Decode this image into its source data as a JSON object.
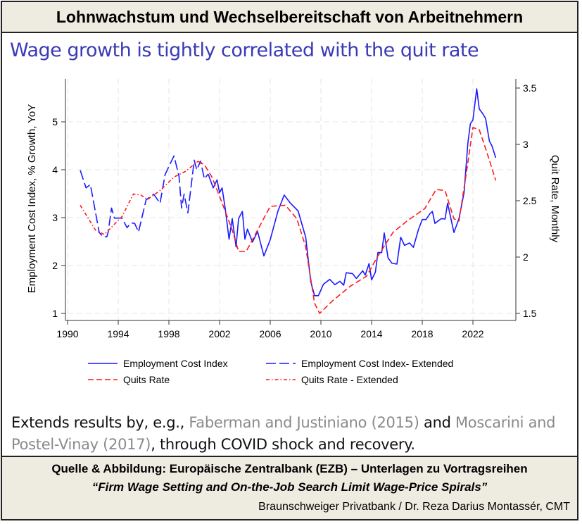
{
  "header": {
    "title": "Lohnwachstum und Wechselbereitschaft von Arbeitnehmern"
  },
  "subtitle": "Wage growth is tightly correlated with the quit rate",
  "note": {
    "part1": "Extends results by, e.g., ",
    "ref1": "Faberman and Justiniano (2015)",
    "part2": " and ",
    "ref2": "Moscarini and Postel-Vinay (2017)",
    "part3": ", through COVID shock and recovery."
  },
  "footer": {
    "source": "Quelle & Abbildung: Europäische Zentralbank (EZB) – Unterlagen zu Vortragsreihen",
    "quote": "“Firm Wage Setting and On-the-Job Search Limit Wage-Price Spirals”",
    "author": "Braunschweiger Privatbank / Dr. Reza Darius Montassér, CMT"
  },
  "chart_data": {
    "type": "line",
    "title": "",
    "xlabel": "",
    "ylabel": "Employment Cost Index, % Growth, YoY",
    "y2label": "Quit Rate, Monthly",
    "xlim": [
      1990,
      2024.7
    ],
    "ylim": [
      0.85,
      5.95
    ],
    "y2lim": [
      1.45,
      3.6
    ],
    "xticks": [
      1990,
      1994,
      1998,
      2002,
      2006,
      2010,
      2014,
      2018,
      2022
    ],
    "yticks": [
      1,
      2,
      3,
      4,
      5
    ],
    "y2ticks": [
      1.5,
      2,
      2.5,
      3,
      3.5
    ],
    "grid": true,
    "legend_position": "bottom",
    "colors": {
      "eci": "#1a1aff",
      "quits": "#ff1a1a"
    },
    "series": [
      {
        "name": "Employment Cost Index",
        "axis": "left",
        "style": "solid",
        "color": "#1a1aff",
        "x": [
          2001.1,
          2001.5,
          2001.8,
          2002.0,
          2002.2,
          2002.45,
          2002.75,
          2003.0,
          2003.3,
          2003.5,
          2003.8,
          2004.0,
          2004.2,
          2004.6,
          2005.0,
          2005.4,
          2005.5,
          2006.0,
          2006.6,
          2007.1,
          2007.6,
          2008.2,
          2008.8,
          2009.2,
          2009.5,
          2009.8,
          2010.2,
          2010.7,
          2011.1,
          2011.5,
          2011.8,
          2012.0,
          2012.5,
          2012.8,
          2013.3,
          2013.5,
          2013.8,
          2014.0,
          2014.3,
          2014.5,
          2014.8,
          2015.0,
          2015.3,
          2015.6,
          2016.0,
          2016.3,
          2016.6,
          2017.0,
          2017.3,
          2017.7,
          2018.0,
          2018.3,
          2018.6,
          2018.8,
          2019.0,
          2019.5,
          2019.8,
          2020.0,
          2020.5,
          2020.9,
          2021.3,
          2021.6,
          2021.8,
          2022.0,
          2022.3,
          2022.5,
          2022.8,
          2023.0,
          2023.3,
          2023.5,
          2023.8
        ],
        "y": [
          3.91,
          3.62,
          3.79,
          3.52,
          3.62,
          3.18,
          2.55,
          2.98,
          2.39,
          2.98,
          3.13,
          2.55,
          2.76,
          2.49,
          2.71,
          2.3,
          2.2,
          2.54,
          3.13,
          3.47,
          3.3,
          3.14,
          2.59,
          1.66,
          1.37,
          1.37,
          1.61,
          1.71,
          1.6,
          1.67,
          1.59,
          1.85,
          1.83,
          1.73,
          1.89,
          1.8,
          2.04,
          1.7,
          1.86,
          2.27,
          2.27,
          2.68,
          2.16,
          2.05,
          2.03,
          2.59,
          2.42,
          2.47,
          2.38,
          2.75,
          2.96,
          2.96,
          3.08,
          3.13,
          2.88,
          2.98,
          2.97,
          3.3,
          2.69,
          2.98,
          3.52,
          4.55,
          4.96,
          5.04,
          5.69,
          5.27,
          5.16,
          5.07,
          4.6,
          4.5,
          4.25
        ]
      },
      {
        "name": "Employment Cost Index- Extended",
        "axis": "left",
        "style": "longdash",
        "color": "#1a1aff",
        "x": [
          1991.0,
          1991.46,
          1991.8,
          1992.5,
          1992.8,
          1993.1,
          1993.2,
          1993.47,
          1993.7,
          1994.3,
          1994.7,
          1995.0,
          1995.3,
          1995.6,
          1996.2,
          1996.8,
          1997.3,
          1997.7,
          1998.4,
          1998.8,
          1999.0,
          1999.2,
          1999.5,
          2000.0,
          2000.2,
          2000.5,
          2000.8,
          2001.1
        ],
        "y": [
          3.99,
          3.62,
          3.69,
          2.69,
          2.6,
          2.6,
          2.69,
          3.2,
          2.99,
          2.99,
          2.79,
          2.89,
          2.88,
          2.7,
          3.37,
          3.49,
          3.3,
          3.9,
          4.29,
          3.86,
          3.2,
          3.49,
          3.1,
          4.2,
          4.0,
          4.18,
          3.81,
          3.91
        ]
      },
      {
        "name": "Quits Rate",
        "axis": "right",
        "style": "dash",
        "color": "#ff1a1a",
        "x": [
          2000.3,
          2000.8,
          2001.4,
          2002.1,
          2003.0,
          2003.5,
          2004.1,
          2005.1,
          2006.0,
          2007.2,
          2008.1,
          2008.8,
          2009.5,
          2009.9,
          2010.9,
          2012.3,
          2013.6,
          2014.5,
          2015.7,
          2016.8,
          2018.2,
          2019.1,
          2019.8,
          2020.5,
          2020.9,
          2021.5,
          2022.0,
          2022.5,
          2023.1,
          2023.8
        ],
        "y": [
          2.85,
          2.82,
          2.71,
          2.51,
          2.24,
          2.05,
          2.05,
          2.26,
          2.45,
          2.46,
          2.34,
          2.09,
          1.59,
          1.5,
          1.61,
          1.74,
          1.83,
          2.01,
          2.22,
          2.32,
          2.43,
          2.6,
          2.59,
          2.34,
          2.32,
          2.76,
          3.15,
          3.13,
          2.93,
          2.68
        ]
      },
      {
        "name": "Quits Rate - Extended",
        "axis": "right",
        "style": "dashdot",
        "color": "#ff1a1a",
        "x": [
          1991.0,
          1992.2,
          1992.9,
          1994.3,
          1995.2,
          1995.8,
          1996.3,
          1997.3,
          1998.4,
          1999.3,
          2000.3
        ],
        "y": [
          2.46,
          2.24,
          2.2,
          2.36,
          2.56,
          2.55,
          2.51,
          2.59,
          2.71,
          2.76,
          2.85
        ]
      }
    ]
  }
}
